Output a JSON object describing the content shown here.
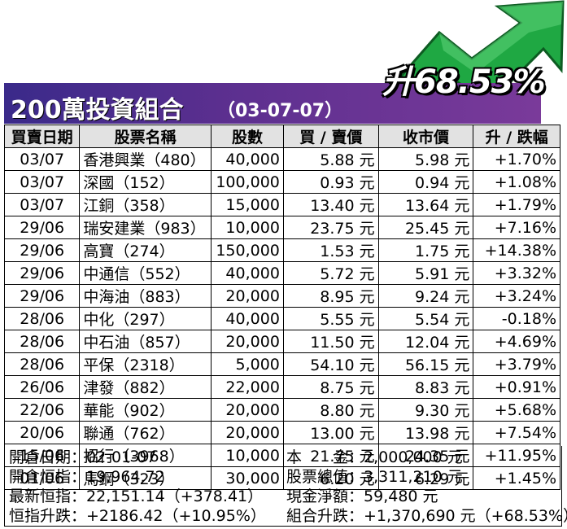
{
  "badge": "升68.53%",
  "header": {
    "title": "200萬投資組合",
    "date": "（03-07-07）"
  },
  "columns": [
    "買賣日期",
    "股票名稱",
    "股數",
    "買 / 賣價",
    "收市價",
    "升 / 跌幅"
  ],
  "rows": [
    {
      "date": "03/07",
      "name": "香港興業（480）",
      "shares": "40,000",
      "price": "5.88 元",
      "close": "5.98 元",
      "change": "+1.70%"
    },
    {
      "date": "03/07",
      "name": "深國（152）",
      "shares": "100,000",
      "price": "0.93 元",
      "close": "0.94 元",
      "change": "+1.08%"
    },
    {
      "date": "03/07",
      "name": "江銅（358）",
      "shares": "15,000",
      "price": "13.40 元",
      "close": "13.64 元",
      "change": "+1.79%"
    },
    {
      "date": "29/06",
      "name": "瑞安建業（983）",
      "shares": "10,000",
      "price": "23.75 元",
      "close": "25.45 元",
      "change": "+7.16%"
    },
    {
      "date": "29/06",
      "name": "高寶（274）",
      "shares": "150,000",
      "price": "1.53 元",
      "close": "1.75 元",
      "change": "+14.38%"
    },
    {
      "date": "29/06",
      "name": "中通信（552）",
      "shares": "40,000",
      "price": "5.72 元",
      "close": "5.91 元",
      "change": "+3.32%"
    },
    {
      "date": "29/06",
      "name": "中海油（883）",
      "shares": "20,000",
      "price": "8.95 元",
      "close": "9.24 元",
      "change": "+3.24%"
    },
    {
      "date": "28/06",
      "name": "中化（297）",
      "shares": "40,000",
      "price": "5.55 元",
      "close": "5.54 元",
      "change": "-0.18%"
    },
    {
      "date": "28/06",
      "name": "中石油（857）",
      "shares": "20,000",
      "price": "11.50 元",
      "close": "12.04 元",
      "change": "+4.69%"
    },
    {
      "date": "28/06",
      "name": "平保（2318）",
      "shares": "5,000",
      "price": "54.10 元",
      "close": "56.15 元",
      "change": "+3.79%"
    },
    {
      "date": "26/06",
      "name": "津發（882）",
      "shares": "22,000",
      "price": "8.75 元",
      "close": "8.83 元",
      "change": "+0.91%"
    },
    {
      "date": "22/06",
      "name": "華能（902）",
      "shares": "20,000",
      "price": "8.80 元",
      "close": "9.30 元",
      "change": "+5.68%"
    },
    {
      "date": "20/06",
      "name": "聯通（762）",
      "shares": "20,000",
      "price": "13.00 元",
      "close": "13.98 元",
      "change": "+7.54%"
    },
    {
      "date": "15/06",
      "name": "招行（3968）",
      "shares": "10,000",
      "price": "21.75 元",
      "close": "24.35 元",
      "change": "+11.95%"
    },
    {
      "date": "01/06",
      "name": "馬鋼（323）",
      "shares": "30,000",
      "price": "6.20 元",
      "close": "6.29 元",
      "change": "+1.45%"
    }
  ],
  "summary": {
    "left": [
      {
        "label": "開倉日期",
        "value": "：02-01-07"
      },
      {
        "label": "開倉恒指",
        "value": "：19,964.72"
      },
      {
        "label": "最新恒指",
        "value": "：22,151.14（+378.41）"
      },
      {
        "label": "恒指升跌",
        "value": "：+2186.42（+10.95%）"
      }
    ],
    "right": [
      {
        "label": "本　　金",
        "value": "：2,000,000 元"
      },
      {
        "label": "股票總值",
        "value": "：3,311,210 元"
      },
      {
        "label": "現金淨額",
        "value": "：59,480 元"
      },
      {
        "label": "組合升跌",
        "value": "：+1,370,690 元（+68.53%）"
      }
    ]
  },
  "colors": {
    "header_purple": "#5b2f8f",
    "arrow_green": "#1fa843",
    "header_row_bg": "#e2e2e2"
  }
}
